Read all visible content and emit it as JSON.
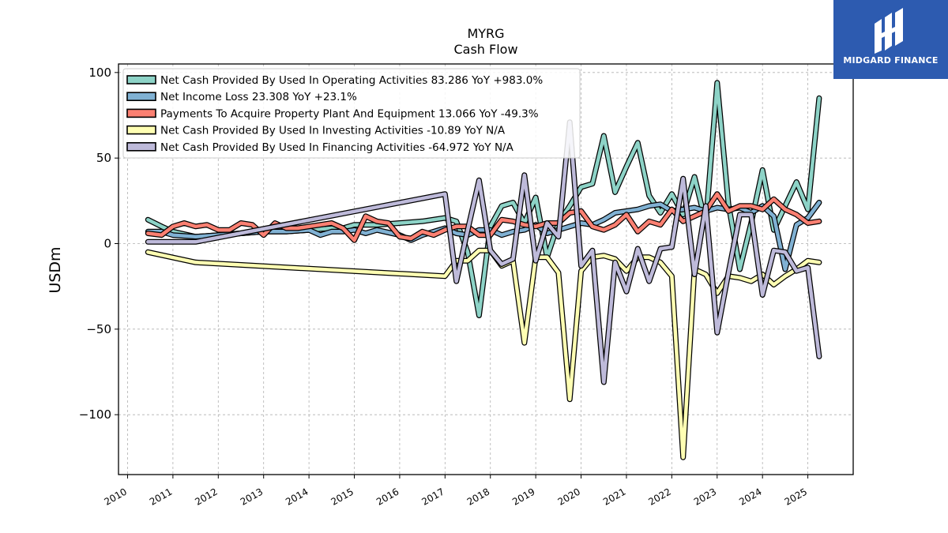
{
  "chart_data": {
    "type": "line",
    "title": "MYRG",
    "subtitle": "Cash Flow",
    "ylabel": "USDm",
    "xlabel": "",
    "ylim": [
      -135,
      105
    ],
    "xlim": [
      2009.8,
      2026.0
    ],
    "yticks": [
      100,
      50,
      0,
      -50,
      -100
    ],
    "ytick_labels": [
      "100",
      "50",
      "0",
      "−50",
      "−100"
    ],
    "xticks": [
      2010,
      2011,
      2012,
      2013,
      2014,
      2015,
      2016,
      2017,
      2018,
      2019,
      2020,
      2021,
      2022,
      2023,
      2024,
      2025
    ],
    "grid": true,
    "legend_position": "top-left",
    "series": [
      {
        "name": "Net Cash Provided By Used In Operating Activities",
        "legend": "Net Cash Provided By Used In Operating Activities  83.286 YoY +983.0%",
        "color": "#8dd3c7",
        "points": [
          [
            2010.45,
            14
          ],
          [
            2010.75,
            10
          ],
          [
            2011.0,
            7
          ],
          [
            2011.5,
            4
          ],
          [
            2012.0,
            5
          ],
          [
            2012.5,
            6
          ],
          [
            2013.0,
            7
          ],
          [
            2013.5,
            7
          ],
          [
            2014.0,
            8
          ],
          [
            2014.5,
            9
          ],
          [
            2014.75,
            9
          ],
          [
            2015.0,
            11
          ],
          [
            2015.25,
            11
          ],
          [
            2015.5,
            11
          ],
          [
            2016.0,
            12
          ],
          [
            2016.5,
            13
          ],
          [
            2017.0,
            15
          ],
          [
            2017.25,
            13
          ],
          [
            2017.5,
            -5
          ],
          [
            2017.75,
            -42
          ],
          [
            2018.0,
            10
          ],
          [
            2018.25,
            22
          ],
          [
            2018.5,
            24
          ],
          [
            2018.75,
            12
          ],
          [
            2019.0,
            27
          ],
          [
            2019.25,
            -8
          ],
          [
            2019.5,
            12
          ],
          [
            2019.75,
            22
          ],
          [
            2020.0,
            33
          ],
          [
            2020.25,
            35
          ],
          [
            2020.5,
            63
          ],
          [
            2020.75,
            30
          ],
          [
            2021.0,
            45
          ],
          [
            2021.25,
            59
          ],
          [
            2021.5,
            28
          ],
          [
            2021.75,
            18
          ],
          [
            2022.0,
            29
          ],
          [
            2022.25,
            17
          ],
          [
            2022.5,
            39
          ],
          [
            2022.75,
            12
          ],
          [
            2023.0,
            94
          ],
          [
            2023.25,
            23
          ],
          [
            2023.5,
            -15
          ],
          [
            2023.75,
            12
          ],
          [
            2024.0,
            43
          ],
          [
            2024.25,
            8
          ],
          [
            2024.5,
            22
          ],
          [
            2024.75,
            36
          ],
          [
            2025.0,
            20
          ],
          [
            2025.25,
            85
          ]
        ]
      },
      {
        "name": "Net Income Loss",
        "legend": "Net Income Loss  23.308 YoY +23.1%",
        "color": "#80b1d3",
        "points": [
          [
            2010.45,
            7
          ],
          [
            2010.75,
            7
          ],
          [
            2011.0,
            5
          ],
          [
            2011.5,
            4
          ],
          [
            2012.0,
            5
          ],
          [
            2012.5,
            6
          ],
          [
            2013.0,
            7
          ],
          [
            2013.5,
            7
          ],
          [
            2014.0,
            8
          ],
          [
            2014.25,
            5
          ],
          [
            2014.5,
            7
          ],
          [
            2014.75,
            7
          ],
          [
            2015.0,
            8
          ],
          [
            2015.25,
            6
          ],
          [
            2015.5,
            8
          ],
          [
            2016.0,
            5
          ],
          [
            2016.25,
            2
          ],
          [
            2016.5,
            5
          ],
          [
            2017.0,
            9
          ],
          [
            2017.25,
            6
          ],
          [
            2017.5,
            5
          ],
          [
            2017.75,
            8
          ],
          [
            2018.0,
            8
          ],
          [
            2018.25,
            5
          ],
          [
            2018.5,
            7
          ],
          [
            2018.75,
            8
          ],
          [
            2019.0,
            11
          ],
          [
            2019.25,
            6
          ],
          [
            2019.5,
            8
          ],
          [
            2019.75,
            10
          ],
          [
            2020.0,
            12
          ],
          [
            2020.25,
            11
          ],
          [
            2020.5,
            14
          ],
          [
            2020.75,
            18
          ],
          [
            2021.0,
            19
          ],
          [
            2021.25,
            20
          ],
          [
            2021.5,
            22
          ],
          [
            2021.75,
            23
          ],
          [
            2022.0,
            19
          ],
          [
            2022.25,
            20
          ],
          [
            2022.5,
            21
          ],
          [
            2022.75,
            19
          ],
          [
            2023.0,
            21
          ],
          [
            2023.25,
            20
          ],
          [
            2023.5,
            21
          ],
          [
            2023.75,
            18
          ],
          [
            2024.0,
            22
          ],
          [
            2024.25,
            16
          ],
          [
            2024.5,
            -15
          ],
          [
            2024.75,
            11
          ],
          [
            2025.0,
            15
          ],
          [
            2025.25,
            24
          ]
        ]
      },
      {
        "name": "Payments To Acquire Property Plant And Equipment",
        "legend": "Payments To Acquire Property Plant And Equipment  13.066 YoY -49.3%",
        "color": "#fb8072",
        "points": [
          [
            2010.45,
            6
          ],
          [
            2010.75,
            5
          ],
          [
            2011.0,
            10
          ],
          [
            2011.25,
            12
          ],
          [
            2011.5,
            10
          ],
          [
            2011.75,
            11
          ],
          [
            2012.0,
            8
          ],
          [
            2012.25,
            8
          ],
          [
            2012.5,
            12
          ],
          [
            2012.75,
            11
          ],
          [
            2013.0,
            5
          ],
          [
            2013.25,
            12
          ],
          [
            2013.5,
            9
          ],
          [
            2013.75,
            9
          ],
          [
            2014.0,
            10
          ],
          [
            2014.25,
            11
          ],
          [
            2014.5,
            12
          ],
          [
            2014.75,
            9
          ],
          [
            2015.0,
            2
          ],
          [
            2015.25,
            16
          ],
          [
            2015.5,
            13
          ],
          [
            2015.75,
            12
          ],
          [
            2016.0,
            4
          ],
          [
            2016.25,
            3
          ],
          [
            2016.5,
            7
          ],
          [
            2016.75,
            5
          ],
          [
            2017.0,
            8
          ],
          [
            2017.25,
            10
          ],
          [
            2017.5,
            10
          ],
          [
            2017.75,
            5
          ],
          [
            2018.0,
            5
          ],
          [
            2018.25,
            14
          ],
          [
            2018.5,
            13
          ],
          [
            2018.75,
            11
          ],
          [
            2019.0,
            10
          ],
          [
            2019.25,
            12
          ],
          [
            2019.5,
            12
          ],
          [
            2019.75,
            18
          ],
          [
            2020.0,
            19
          ],
          [
            2020.25,
            10
          ],
          [
            2020.5,
            8
          ],
          [
            2020.75,
            11
          ],
          [
            2021.0,
            17
          ],
          [
            2021.25,
            7
          ],
          [
            2021.5,
            13
          ],
          [
            2021.75,
            11
          ],
          [
            2022.0,
            20
          ],
          [
            2022.25,
            13
          ],
          [
            2022.5,
            16
          ],
          [
            2022.75,
            19
          ],
          [
            2023.0,
            29
          ],
          [
            2023.25,
            19
          ],
          [
            2023.5,
            22
          ],
          [
            2023.75,
            22
          ],
          [
            2024.0,
            20
          ],
          [
            2024.25,
            26
          ],
          [
            2024.5,
            20
          ],
          [
            2024.75,
            17
          ],
          [
            2025.0,
            12
          ],
          [
            2025.25,
            13
          ]
        ]
      },
      {
        "name": "Net Cash Provided By Used In Investing Activities",
        "legend": "Net Cash Provided By Used In Investing Activities  -10.89 YoY N/A",
        "color": "#ffffb3",
        "points": [
          [
            2010.45,
            -5
          ],
          [
            2011.5,
            -11
          ],
          [
            2017.0,
            -19
          ],
          [
            2017.25,
            -10
          ],
          [
            2017.5,
            -10
          ],
          [
            2017.75,
            -4
          ],
          [
            2018.0,
            -4
          ],
          [
            2018.25,
            -13
          ],
          [
            2018.5,
            -10
          ],
          [
            2018.75,
            -58
          ],
          [
            2019.0,
            -8
          ],
          [
            2019.25,
            -8
          ],
          [
            2019.5,
            -17
          ],
          [
            2019.75,
            -91
          ],
          [
            2020.0,
            -16
          ],
          [
            2020.25,
            -8
          ],
          [
            2020.5,
            -7
          ],
          [
            2020.75,
            -9
          ],
          [
            2021.0,
            -16
          ],
          [
            2021.25,
            -8
          ],
          [
            2021.5,
            -8
          ],
          [
            2021.75,
            -11
          ],
          [
            2022.0,
            -19
          ],
          [
            2022.25,
            -125
          ],
          [
            2022.5,
            -15
          ],
          [
            2022.75,
            -18
          ],
          [
            2023.0,
            -29
          ],
          [
            2023.25,
            -19
          ],
          [
            2023.5,
            -20
          ],
          [
            2023.75,
            -22
          ],
          [
            2024.0,
            -18
          ],
          [
            2024.25,
            -24
          ],
          [
            2024.5,
            -19
          ],
          [
            2024.75,
            -15
          ],
          [
            2025.0,
            -10
          ],
          [
            2025.25,
            -11
          ]
        ]
      },
      {
        "name": "Net Cash Provided By Used In Financing Activities",
        "legend": "Net Cash Provided By Used In Financing Activities  -64.972 YoY N/A",
        "color": "#bebada",
        "points": [
          [
            2010.45,
            1
          ],
          [
            2011.5,
            1
          ],
          [
            2017.0,
            29
          ],
          [
            2017.25,
            -22
          ],
          [
            2017.5,
            8
          ],
          [
            2017.75,
            37
          ],
          [
            2018.0,
            -4
          ],
          [
            2018.25,
            -12
          ],
          [
            2018.5,
            -9
          ],
          [
            2018.75,
            40
          ],
          [
            2019.0,
            -10
          ],
          [
            2019.25,
            12
          ],
          [
            2019.5,
            4
          ],
          [
            2019.75,
            71
          ],
          [
            2020.0,
            -13
          ],
          [
            2020.25,
            -4
          ],
          [
            2020.5,
            -81
          ],
          [
            2020.75,
            -11
          ],
          [
            2021.0,
            -28
          ],
          [
            2021.25,
            -3
          ],
          [
            2021.5,
            -22
          ],
          [
            2021.75,
            -3
          ],
          [
            2022.0,
            -2
          ],
          [
            2022.25,
            38
          ],
          [
            2022.5,
            -18
          ],
          [
            2022.75,
            22
          ],
          [
            2023.0,
            -52
          ],
          [
            2023.25,
            -17
          ],
          [
            2023.5,
            17
          ],
          [
            2023.75,
            17
          ],
          [
            2024.0,
            -30
          ],
          [
            2024.25,
            -4
          ],
          [
            2024.5,
            -5
          ],
          [
            2024.75,
            -16
          ],
          [
            2025.0,
            -14
          ],
          [
            2025.25,
            -66
          ]
        ]
      }
    ]
  },
  "logo": {
    "text": "MIDGARD FINANCE",
    "background": "#2d5bb0"
  }
}
